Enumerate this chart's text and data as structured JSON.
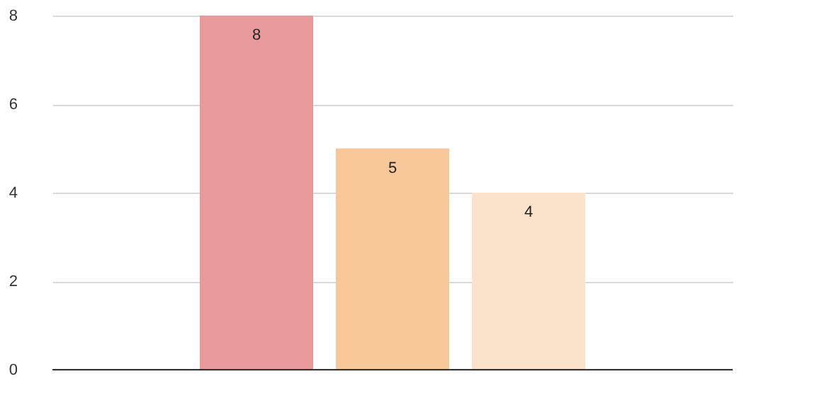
{
  "chart_data": {
    "type": "bar",
    "categories": [
      null,
      null,
      null
    ],
    "values": [
      8,
      5,
      4
    ],
    "colors": [
      "#e89a9a",
      "#f7c89a",
      "#fbe3cb"
    ],
    "ylim": [
      0,
      8
    ],
    "yticks": [
      0,
      2,
      4,
      6,
      8
    ],
    "grid": "y",
    "data_labels": true,
    "tick_labels": "y"
  }
}
